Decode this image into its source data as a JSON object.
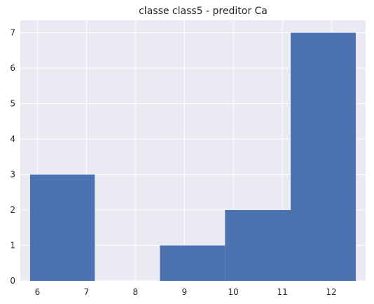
{
  "chart_data": {
    "type": "bar",
    "subtype": "histogram",
    "title": "classe class5 - preditor Ca",
    "xlabel": "",
    "ylabel": "",
    "bins": [
      {
        "x_start": 5.85,
        "x_end": 7.17,
        "count": 3
      },
      {
        "x_start": 7.17,
        "x_end": 8.5,
        "count": 0
      },
      {
        "x_start": 8.5,
        "x_end": 9.83,
        "count": 1
      },
      {
        "x_start": 9.83,
        "x_end": 11.17,
        "count": 2
      },
      {
        "x_start": 11.17,
        "x_end": 12.5,
        "count": 7
      }
    ],
    "xlim": [
      5.65,
      12.7
    ],
    "ylim": [
      0,
      7.35
    ],
    "x_ticks": [
      6,
      7,
      8,
      9,
      10,
      11,
      12
    ],
    "y_ticks": [
      0,
      1,
      2,
      3,
      4,
      5,
      6,
      7
    ],
    "grid": true,
    "bar_color": "#4c72b0",
    "background_color": "#eaeaf2",
    "grid_color": "#ffffff"
  }
}
